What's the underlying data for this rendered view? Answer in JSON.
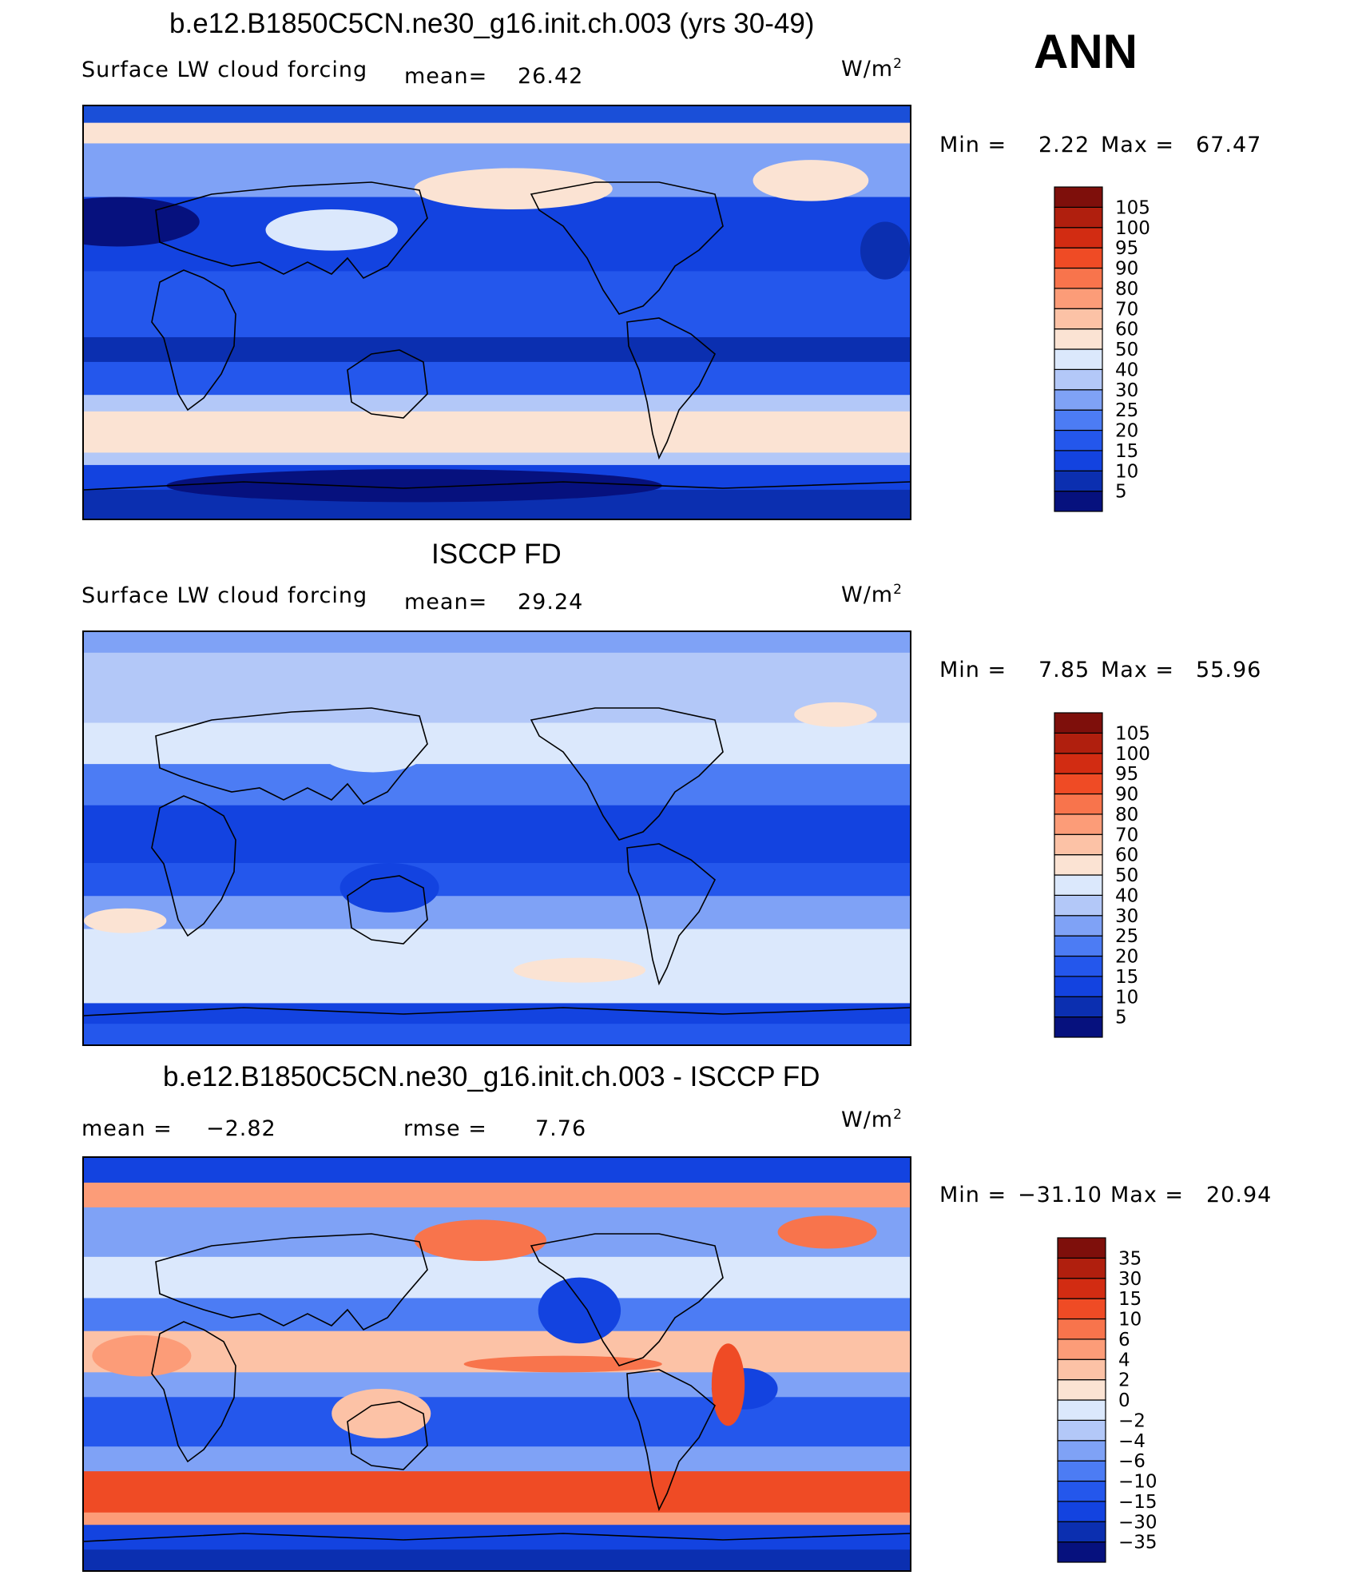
{
  "season": "ANN",
  "units_base": "W/m",
  "units_exp": "2",
  "panels": [
    {
      "title": "b.e12.B1850C5CN.ne30_g16.init.ch.003 (yrs 30-49)",
      "variable": "Surface LW cloud forcing",
      "mean_label": "mean=",
      "mean_value": "26.42",
      "min_label": "Min =",
      "min_value": "2.22",
      "max_label": "Max =",
      "max_value": "67.47"
    },
    {
      "title": "ISCCP FD",
      "variable": "Surface LW cloud forcing",
      "mean_label": "mean=",
      "mean_value": "29.24",
      "min_label": "Min =",
      "min_value": "7.85",
      "max_label": "Max =",
      "max_value": "55.96"
    },
    {
      "title": "b.e12.B1850C5CN.ne30_g16.init.ch.003 - ISCCP FD",
      "mean_label": "mean =",
      "mean_value": "−2.82",
      "rmse_label": "rmse =",
      "rmse_value": "7.76",
      "min_label": "Min =",
      "min_value": "−31.10",
      "max_label": "Max =",
      "max_value": "20.94"
    }
  ],
  "chart_data": [
    {
      "type": "heatmap",
      "title": "b.e12.B1850C5CN.ne30_g16.init.ch.003 (yrs 30-49)",
      "variable": "Surface LW cloud forcing",
      "units": "W/m2",
      "mean": 26.42,
      "min": 2.22,
      "max": 67.47,
      "colorbar_levels": [
        5,
        10,
        15,
        20,
        25,
        30,
        40,
        50,
        60,
        70,
        80,
        90,
        95,
        100,
        105
      ],
      "colorbar_colors": [
        "#06117e",
        "#0b2fb0",
        "#1343e0",
        "#2457ec",
        "#4c7cf4",
        "#7fa2f6",
        "#b3c8f8",
        "#dbe8fc",
        "#fbe3d3",
        "#fcc2a6",
        "#fc9c78",
        "#f8744c",
        "#ef4b25",
        "#d22c12",
        "#b01f0e",
        "#7e0f0b"
      ]
    },
    {
      "type": "heatmap",
      "title": "ISCCP FD",
      "variable": "Surface LW cloud forcing",
      "units": "W/m2",
      "mean": 29.24,
      "min": 7.85,
      "max": 55.96,
      "colorbar_levels": [
        5,
        10,
        15,
        20,
        25,
        30,
        40,
        50,
        60,
        70,
        80,
        90,
        95,
        100,
        105
      ],
      "colorbar_colors": [
        "#06117e",
        "#0b2fb0",
        "#1343e0",
        "#2457ec",
        "#4c7cf4",
        "#7fa2f6",
        "#b3c8f8",
        "#dbe8fc",
        "#fbe3d3",
        "#fcc2a6",
        "#fc9c78",
        "#f8744c",
        "#ef4b25",
        "#d22c12",
        "#b01f0e",
        "#7e0f0b"
      ]
    },
    {
      "type": "heatmap",
      "title": "b.e12.B1850C5CN.ne30_g16.init.ch.003 - ISCCP FD",
      "units": "W/m2",
      "mean": -2.82,
      "rmse": 7.76,
      "min": -31.1,
      "max": 20.94,
      "colorbar_levels": [
        -35,
        -30,
        -15,
        -10,
        -6,
        -4,
        -2,
        0,
        2,
        4,
        6,
        10,
        15,
        30,
        35
      ],
      "colorbar_labels": [
        "−35",
        "−30",
        "−15",
        "−10",
        "−6",
        "−4",
        "−2",
        "0",
        "2",
        "4",
        "6",
        "10",
        "15",
        "30",
        "35"
      ],
      "colorbar_colors": [
        "#06117e",
        "#0b2fb0",
        "#1343e0",
        "#2457ec",
        "#4c7cf4",
        "#7fa2f6",
        "#b3c8f8",
        "#dbe8fc",
        "#fbe3d3",
        "#fcc2a6",
        "#fc9c78",
        "#f8744c",
        "#ef4b25",
        "#d22c12",
        "#b01f0e",
        "#7e0f0b"
      ]
    }
  ]
}
